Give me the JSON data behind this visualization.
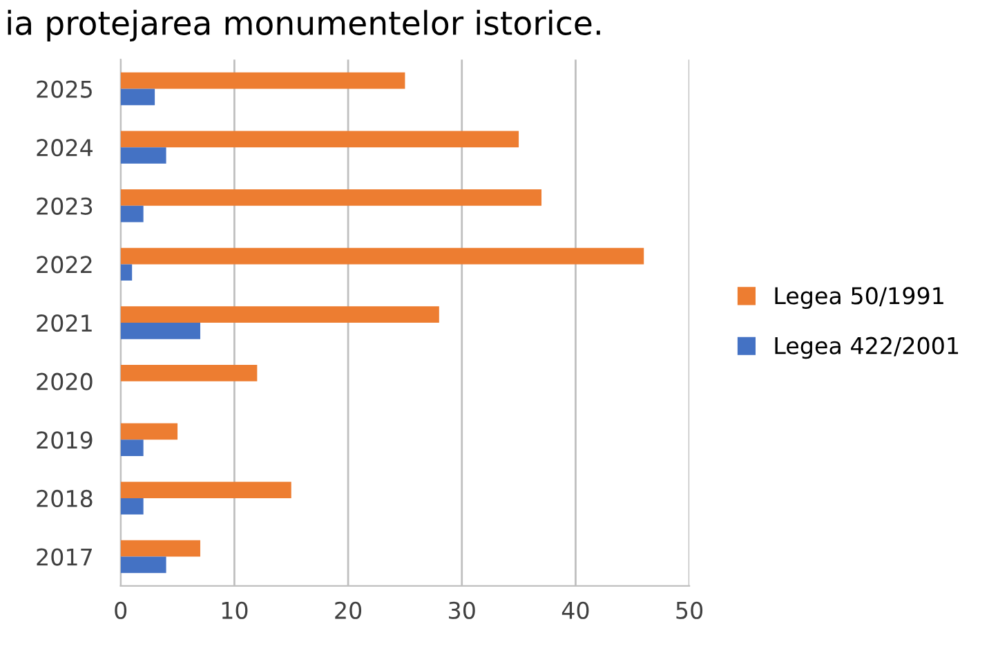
{
  "chart_data": {
    "type": "bar",
    "orientation": "horizontal",
    "title": "ia protejarea monumentelor istorice.",
    "categories": [
      "2025",
      "2024",
      "2023",
      "2022",
      "2021",
      "2020",
      "2019",
      "2018",
      "2017"
    ],
    "series": [
      {
        "name": "Legea 50/1991",
        "color": "#ed7d31",
        "values": [
          25,
          35,
          37,
          46,
          28,
          12,
          5,
          15,
          7
        ]
      },
      {
        "name": "Legea 422/2001",
        "color": "#4472c4",
        "values": [
          3,
          4,
          2,
          1,
          7,
          0,
          2,
          2,
          4
        ]
      }
    ],
    "xlim": [
      0,
      50
    ],
    "xticks": [
      0,
      10,
      20,
      30,
      40,
      50
    ],
    "grid": "x",
    "legend": "right"
  }
}
